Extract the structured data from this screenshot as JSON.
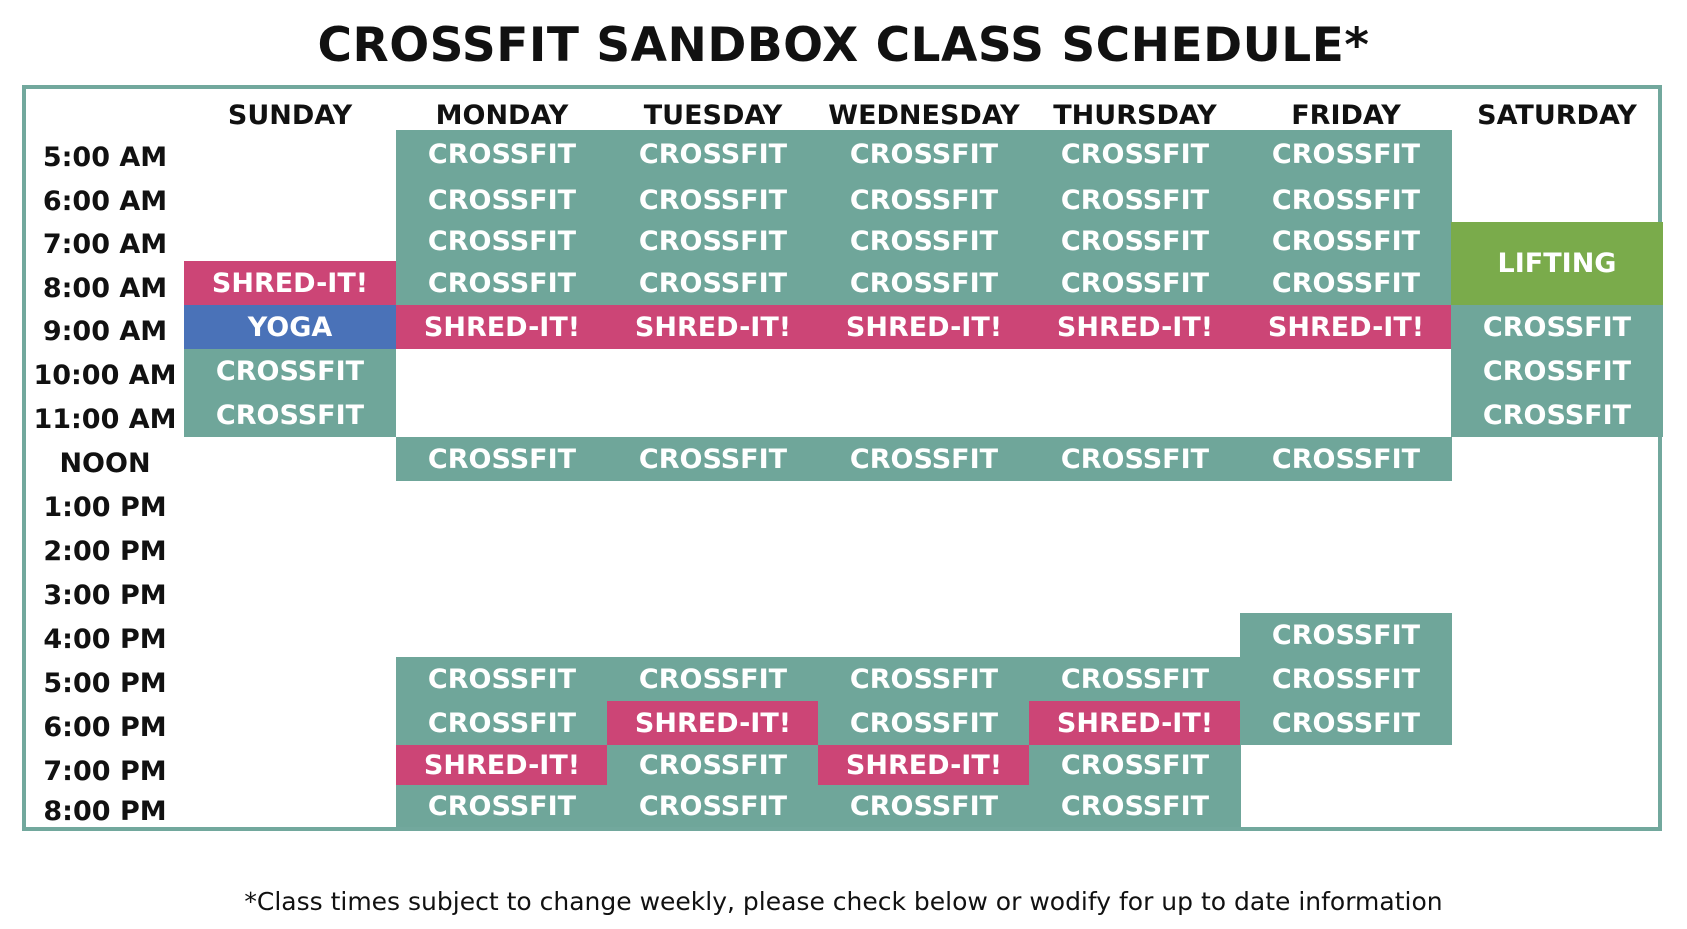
{
  "title": "CROSSFIT SANDBOX CLASS SCHEDULE*",
  "days": [
    "SUNDAY",
    "MONDAY",
    "TUESDAY",
    "WEDNESDAY",
    "THURSDAY",
    "FRIDAY",
    "SATURDAY"
  ],
  "times": [
    "5:00 AM",
    "6:00 AM",
    "7:00 AM",
    "8:00 AM",
    "9:00 AM",
    "10:00 AM",
    "11:00 AM",
    "NOON",
    "1:00 PM",
    "2:00 PM",
    "3:00 PM",
    "4:00 PM",
    "5:00 PM",
    "6:00 PM",
    "7:00 PM",
    "8:00 PM"
  ],
  "colors": {
    "crossfit": "#6fa69a",
    "shred": "#cc4576",
    "yoga": "#4a72b8",
    "lifting": "#7aab4b",
    "border": "#72a89d"
  },
  "schedule": {
    "SUNDAY": [
      {
        "label": "SHRED-IT!",
        "type": "shred",
        "start": "8:00 AM",
        "end": "8:00 AM"
      },
      {
        "label": "YOGA",
        "type": "yoga",
        "start": "9:00 AM",
        "end": "9:00 AM"
      },
      {
        "label": "CROSSFIT",
        "type": "crossfit",
        "start": "10:00 AM",
        "end": "10:00 AM"
      },
      {
        "label": "CROSSFIT",
        "type": "crossfit",
        "start": "11:00 AM",
        "end": "11:00 AM"
      }
    ],
    "MONDAY": [
      {
        "label": "CROSSFIT",
        "type": "crossfit",
        "start": "5:00 AM",
        "end": "5:00 AM"
      },
      {
        "label": "CROSSFIT",
        "type": "crossfit",
        "start": "6:00 AM",
        "end": "6:00 AM"
      },
      {
        "label": "CROSSFIT",
        "type": "crossfit",
        "start": "7:00 AM",
        "end": "7:00 AM"
      },
      {
        "label": "CROSSFIT",
        "type": "crossfit",
        "start": "8:00 AM",
        "end": "8:00 AM"
      },
      {
        "label": "SHRED-IT!",
        "type": "shred",
        "start": "9:00 AM",
        "end": "9:00 AM"
      },
      {
        "label": "CROSSFIT",
        "type": "crossfit",
        "start": "NOON",
        "end": "NOON"
      },
      {
        "label": "CROSSFIT",
        "type": "crossfit",
        "start": "5:00 PM",
        "end": "5:00 PM"
      },
      {
        "label": "CROSSFIT",
        "type": "crossfit",
        "start": "6:00 PM",
        "end": "6:00 PM"
      },
      {
        "label": "SHRED-IT!",
        "type": "shred",
        "start": "7:00 PM",
        "end": "7:00 PM"
      },
      {
        "label": "CROSSFIT",
        "type": "crossfit",
        "start": "8:00 PM",
        "end": "8:00 PM"
      }
    ],
    "TUESDAY": [
      {
        "label": "CROSSFIT",
        "type": "crossfit",
        "start": "5:00 AM",
        "end": "5:00 AM"
      },
      {
        "label": "CROSSFIT",
        "type": "crossfit",
        "start": "6:00 AM",
        "end": "6:00 AM"
      },
      {
        "label": "CROSSFIT",
        "type": "crossfit",
        "start": "7:00 AM",
        "end": "7:00 AM"
      },
      {
        "label": "CROSSFIT",
        "type": "crossfit",
        "start": "8:00 AM",
        "end": "8:00 AM"
      },
      {
        "label": "SHRED-IT!",
        "type": "shred",
        "start": "9:00 AM",
        "end": "9:00 AM"
      },
      {
        "label": "CROSSFIT",
        "type": "crossfit",
        "start": "NOON",
        "end": "NOON"
      },
      {
        "label": "CROSSFIT",
        "type": "crossfit",
        "start": "5:00 PM",
        "end": "5:00 PM"
      },
      {
        "label": "SHRED-IT!",
        "type": "shred",
        "start": "6:00 PM",
        "end": "6:00 PM"
      },
      {
        "label": "CROSSFIT",
        "type": "crossfit",
        "start": "7:00 PM",
        "end": "7:00 PM"
      },
      {
        "label": "CROSSFIT",
        "type": "crossfit",
        "start": "8:00 PM",
        "end": "8:00 PM"
      }
    ],
    "WEDNESDAY": [
      {
        "label": "CROSSFIT",
        "type": "crossfit",
        "start": "5:00 AM",
        "end": "5:00 AM"
      },
      {
        "label": "CROSSFIT",
        "type": "crossfit",
        "start": "6:00 AM",
        "end": "6:00 AM"
      },
      {
        "label": "CROSSFIT",
        "type": "crossfit",
        "start": "7:00 AM",
        "end": "7:00 AM"
      },
      {
        "label": "CROSSFIT",
        "type": "crossfit",
        "start": "8:00 AM",
        "end": "8:00 AM"
      },
      {
        "label": "SHRED-IT!",
        "type": "shred",
        "start": "9:00 AM",
        "end": "9:00 AM"
      },
      {
        "label": "CROSSFIT",
        "type": "crossfit",
        "start": "NOON",
        "end": "NOON"
      },
      {
        "label": "CROSSFIT",
        "type": "crossfit",
        "start": "5:00 PM",
        "end": "5:00 PM"
      },
      {
        "label": "CROSSFIT",
        "type": "crossfit",
        "start": "6:00 PM",
        "end": "6:00 PM"
      },
      {
        "label": "SHRED-IT!",
        "type": "shred",
        "start": "7:00 PM",
        "end": "7:00 PM"
      },
      {
        "label": "CROSSFIT",
        "type": "crossfit",
        "start": "8:00 PM",
        "end": "8:00 PM"
      }
    ],
    "THURSDAY": [
      {
        "label": "CROSSFIT",
        "type": "crossfit",
        "start": "5:00 AM",
        "end": "5:00 AM"
      },
      {
        "label": "CROSSFIT",
        "type": "crossfit",
        "start": "6:00 AM",
        "end": "6:00 AM"
      },
      {
        "label": "CROSSFIT",
        "type": "crossfit",
        "start": "7:00 AM",
        "end": "7:00 AM"
      },
      {
        "label": "CROSSFIT",
        "type": "crossfit",
        "start": "8:00 AM",
        "end": "8:00 AM"
      },
      {
        "label": "SHRED-IT!",
        "type": "shred",
        "start": "9:00 AM",
        "end": "9:00 AM"
      },
      {
        "label": "CROSSFIT",
        "type": "crossfit",
        "start": "NOON",
        "end": "NOON"
      },
      {
        "label": "CROSSFIT",
        "type": "crossfit",
        "start": "5:00 PM",
        "end": "5:00 PM"
      },
      {
        "label": "SHRED-IT!",
        "type": "shred",
        "start": "6:00 PM",
        "end": "6:00 PM"
      },
      {
        "label": "CROSSFIT",
        "type": "crossfit",
        "start": "7:00 PM",
        "end": "7:00 PM"
      },
      {
        "label": "CROSSFIT",
        "type": "crossfit",
        "start": "8:00 PM",
        "end": "8:00 PM"
      }
    ],
    "FRIDAY": [
      {
        "label": "CROSSFIT",
        "type": "crossfit",
        "start": "5:00 AM",
        "end": "5:00 AM"
      },
      {
        "label": "CROSSFIT",
        "type": "crossfit",
        "start": "6:00 AM",
        "end": "6:00 AM"
      },
      {
        "label": "CROSSFIT",
        "type": "crossfit",
        "start": "7:00 AM",
        "end": "7:00 AM"
      },
      {
        "label": "CROSSFIT",
        "type": "crossfit",
        "start": "8:00 AM",
        "end": "8:00 AM"
      },
      {
        "label": "SHRED-IT!",
        "type": "shred",
        "start": "9:00 AM",
        "end": "9:00 AM"
      },
      {
        "label": "CROSSFIT",
        "type": "crossfit",
        "start": "NOON",
        "end": "NOON"
      },
      {
        "label": "CROSSFIT",
        "type": "crossfit",
        "start": "4:00 PM",
        "end": "4:00 PM"
      },
      {
        "label": "CROSSFIT",
        "type": "crossfit",
        "start": "5:00 PM",
        "end": "5:00 PM"
      },
      {
        "label": "CROSSFIT",
        "type": "crossfit",
        "start": "6:00 PM",
        "end": "6:00 PM"
      }
    ],
    "SATURDAY": [
      {
        "label": "LIFTING",
        "type": "lifting",
        "start": "7:00 AM",
        "end": "8:00 AM"
      },
      {
        "label": "CROSSFIT",
        "type": "crossfit",
        "start": "9:00 AM",
        "end": "9:00 AM"
      },
      {
        "label": "CROSSFIT",
        "type": "crossfit",
        "start": "10:00 AM",
        "end": "10:00 AM"
      },
      {
        "label": "CROSSFIT",
        "type": "crossfit",
        "start": "11:00 AM",
        "end": "11:00 AM"
      }
    ]
  },
  "footnote": "*Class times subject to change weekly, please check below or wodify for up to date information"
}
